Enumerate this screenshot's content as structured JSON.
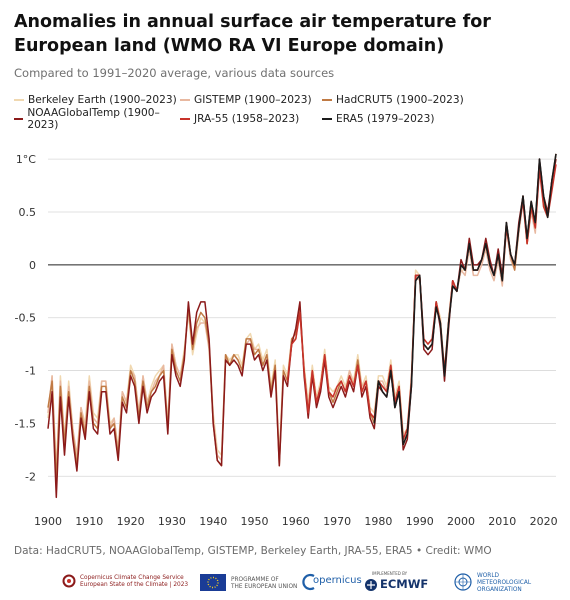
{
  "chart_data": {
    "type": "line",
    "title": "Anomalies in annual surface air temperature for European land (WMO RA VI Europe domain)",
    "subtitle": "Compared to 1991–2020 average, various data sources",
    "xlabel": "",
    "ylabel": "",
    "xlim": [
      1900,
      2023
    ],
    "ylim": [
      -2.3,
      1.2
    ],
    "x_ticks": [
      "1900",
      "1910",
      "1920",
      "1930",
      "1940",
      "1950",
      "1960",
      "1970",
      "1980",
      "1990",
      "2000",
      "2010",
      "2020"
    ],
    "y_ticks": [
      {
        "value": 1,
        "label": "1°C"
      },
      {
        "value": 0.5,
        "label": "0.5"
      },
      {
        "value": 0,
        "label": "0"
      },
      {
        "value": -0.5,
        "label": "-0.5"
      },
      {
        "value": -1,
        "label": "-1"
      },
      {
        "value": -1.5,
        "label": "-1.5"
      },
      {
        "value": -2,
        "label": "-2"
      }
    ],
    "grid": "horizontal",
    "legend_position": "top",
    "series": [
      {
        "name": "Berkeley Earth (1900–2023)",
        "color": "#f0d8b0",
        "start": 1900,
        "values": [
          -1.45,
          -1.05,
          -1.95,
          -1.05,
          -1.65,
          -1.1,
          -1.55,
          -1.85,
          -1.35,
          -1.5,
          -1.05,
          -1.4,
          -1.45,
          -1.1,
          -1.1,
          -1.5,
          -1.45,
          -1.75,
          -1.2,
          -1.3,
          -0.95,
          -1.05,
          -1.4,
          -1.05,
          -1.3,
          -1.15,
          -1.05,
          -1.0,
          -0.95,
          -1.5,
          -0.75,
          -0.95,
          -1.05,
          -0.8,
          -0.45,
          -0.85,
          -0.65,
          -0.5,
          -0.55,
          -0.75,
          -1.4,
          -1.75,
          -1.8,
          -0.85,
          -0.9,
          -0.85,
          -0.85,
          -0.95,
          -0.7,
          -0.65,
          -0.8,
          -0.75,
          -0.9,
          -0.8,
          -1.15,
          -0.9,
          -1.8,
          -0.95,
          -1.05,
          -0.7,
          -0.7,
          -0.4,
          -0.95,
          -1.3,
          -0.95,
          -1.25,
          -1.1,
          -0.8,
          -1.15,
          -1.2,
          -1.15,
          -1.05,
          -1.15,
          -1.0,
          -1.1,
          -0.85,
          -1.15,
          -1.05,
          -1.35,
          -1.4,
          -1.05,
          -1.05,
          -1.15,
          -0.9,
          -1.25,
          -1.1,
          -1.6,
          -1.55,
          -1.05,
          -0.05,
          -0.1,
          -0.7,
          -0.75,
          -0.7,
          -0.35,
          -0.5,
          -1.0,
          -0.5,
          -0.15,
          -0.25,
          -0.05,
          -0.05,
          0.2,
          -0.05,
          -0.05,
          0.05,
          0.2,
          0.0,
          -0.1,
          0.1,
          -0.15,
          0.4,
          0.1,
          0.0,
          0.35,
          0.65,
          0.2,
          0.55,
          0.35,
          0.95,
          0.55,
          0.45,
          0.75,
          1.0
        ]
      },
      {
        "name": "GISTEMP (1900–2023)",
        "color": "#e8b8a0",
        "start": 1900,
        "values": [
          -1.4,
          -1.05,
          -1.95,
          -1.1,
          -1.65,
          -1.15,
          -1.55,
          -1.8,
          -1.35,
          -1.55,
          -1.1,
          -1.45,
          -1.5,
          -1.1,
          -1.1,
          -1.55,
          -1.45,
          -1.75,
          -1.2,
          -1.3,
          -1.0,
          -1.05,
          -1.4,
          -1.05,
          -1.3,
          -1.2,
          -1.1,
          -1.05,
          -0.95,
          -1.5,
          -0.75,
          -0.95,
          -1.05,
          -0.85,
          -0.45,
          -0.8,
          -0.6,
          -0.55,
          -0.55,
          -0.8,
          -1.45,
          -1.8,
          -1.85,
          -0.85,
          -0.95,
          -0.85,
          -0.9,
          -1.0,
          -0.75,
          -0.7,
          -0.8,
          -0.8,
          -0.95,
          -0.85,
          -1.2,
          -0.95,
          -1.85,
          -1.0,
          -1.1,
          -0.75,
          -0.7,
          -0.45,
          -1.0,
          -1.35,
          -1.0,
          -1.3,
          -1.15,
          -0.85,
          -1.2,
          -1.25,
          -1.15,
          -1.1,
          -1.2,
          -1.0,
          -1.15,
          -0.9,
          -1.15,
          -1.1,
          -1.4,
          -1.45,
          -1.1,
          -1.1,
          -1.2,
          -0.95,
          -1.3,
          -1.15,
          -1.65,
          -1.6,
          -1.1,
          -0.1,
          -0.15,
          -0.75,
          -0.8,
          -0.75,
          -0.4,
          -0.55,
          -1.05,
          -0.55,
          -0.2,
          -0.25,
          -0.05,
          -0.1,
          0.15,
          -0.1,
          -0.1,
          0.0,
          0.15,
          -0.05,
          -0.15,
          0.05,
          -0.2,
          0.35,
          0.05,
          -0.05,
          0.3,
          0.6,
          0.2,
          0.5,
          0.3,
          0.95,
          0.55,
          0.45,
          0.75,
          1.05
        ]
      },
      {
        "name": "HadCRUT5 (1900–2023)",
        "color": "#c07a44",
        "start": 1900,
        "values": [
          -1.35,
          -1.1,
          -2.05,
          -1.15,
          -1.7,
          -1.2,
          -1.6,
          -1.9,
          -1.4,
          -1.6,
          -1.15,
          -1.5,
          -1.55,
          -1.15,
          -1.15,
          -1.55,
          -1.5,
          -1.8,
          -1.25,
          -1.35,
          -1.0,
          -1.1,
          -1.45,
          -1.1,
          -1.35,
          -1.2,
          -1.15,
          -1.05,
          -1.0,
          -1.55,
          -0.8,
          -1.0,
          -1.1,
          -0.85,
          -0.4,
          -0.8,
          -0.55,
          -0.45,
          -0.5,
          -0.75,
          -1.5,
          -1.85,
          -1.9,
          -0.85,
          -0.95,
          -0.85,
          -0.9,
          -1.0,
          -0.7,
          -0.7,
          -0.85,
          -0.8,
          -0.95,
          -0.85,
          -1.2,
          -0.95,
          -1.9,
          -1.0,
          -1.1,
          -0.7,
          -0.65,
          -0.4,
          -1.0,
          -1.4,
          -1.0,
          -1.3,
          -1.15,
          -0.85,
          -1.2,
          -1.3,
          -1.2,
          -1.1,
          -1.2,
          -1.05,
          -1.15,
          -0.9,
          -1.2,
          -1.1,
          -1.4,
          -1.5,
          -1.1,
          -1.15,
          -1.2,
          -0.95,
          -1.3,
          -1.15,
          -1.7,
          -1.6,
          -1.1,
          -0.1,
          -0.1,
          -0.75,
          -0.8,
          -0.75,
          -0.35,
          -0.55,
          -1.05,
          -0.55,
          -0.15,
          -0.25,
          0.0,
          -0.05,
          0.2,
          -0.05,
          -0.05,
          0.05,
          0.2,
          0.0,
          -0.1,
          0.1,
          -0.15,
          0.35,
          0.1,
          -0.05,
          0.35,
          0.65,
          0.2,
          0.55,
          0.35,
          0.95,
          0.6,
          0.45,
          0.8,
          1.05
        ]
      },
      {
        "name": "NOAAGlobalTemp (1900–2023)",
        "color": "#8b1a1a",
        "start": 1900,
        "values": [
          -1.55,
          -1.2,
          -2.2,
          -1.25,
          -1.8,
          -1.25,
          -1.65,
          -1.95,
          -1.45,
          -1.65,
          -1.2,
          -1.55,
          -1.6,
          -1.2,
          -1.2,
          -1.6,
          -1.55,
          -1.85,
          -1.3,
          -1.4,
          -1.05,
          -1.15,
          -1.5,
          -1.15,
          -1.4,
          -1.25,
          -1.2,
          -1.1,
          -1.05,
          -1.6,
          -0.85,
          -1.05,
          -1.15,
          -0.9,
          -0.35,
          -0.75,
          -0.45,
          -0.35,
          -0.35,
          -0.7,
          -1.5,
          -1.85,
          -1.9,
          -0.9,
          -0.95,
          -0.9,
          -0.95,
          -1.05,
          -0.75,
          -0.75,
          -0.9,
          -0.85,
          -1.0,
          -0.9,
          -1.25,
          -1.0,
          -1.9,
          -1.05,
          -1.15,
          -0.75,
          -0.6,
          -0.35,
          -1.05,
          -1.45,
          -1.05,
          -1.35,
          -1.2,
          -0.9,
          -1.25,
          -1.35,
          -1.25,
          -1.15,
          -1.25,
          -1.1,
          -1.2,
          -0.95,
          -1.25,
          -1.15,
          -1.45,
          -1.55,
          -1.15,
          -1.2,
          -1.25,
          -1.0,
          -1.35,
          -1.2,
          -1.75,
          -1.65,
          -1.15,
          -0.1,
          -0.1,
          -0.8,
          -0.85,
          -0.8,
          -0.35,
          -0.6,
          -1.1,
          -0.6,
          -0.15,
          -0.25,
          0.05,
          -0.05,
          0.25,
          0.0,
          0.0,
          0.05,
          0.25,
          0.05,
          -0.1,
          0.15,
          -0.1,
          0.4,
          0.1,
          0.0,
          0.4,
          0.65,
          0.25,
          0.6,
          0.4,
          1.0,
          0.65,
          0.5,
          0.8,
          1.0
        ]
      },
      {
        "name": "JRA-55 (1958–2023)",
        "color": "#c8322a",
        "start": 1958,
        "values": [
          -1.1,
          -0.75,
          -0.7,
          -0.45,
          -1.0,
          -1.4,
          -1.0,
          -1.3,
          -1.15,
          -0.85,
          -1.2,
          -1.25,
          -1.15,
          -1.1,
          -1.2,
          -1.05,
          -1.15,
          -0.95,
          -1.2,
          -1.1,
          -1.4,
          -1.45,
          -1.1,
          -1.15,
          -1.2,
          -0.95,
          -1.3,
          -1.15,
          -1.65,
          -1.55,
          -1.1,
          -0.1,
          -0.1,
          -0.7,
          -0.75,
          -0.7,
          -0.35,
          -0.55,
          -1.0,
          -0.55,
          -0.15,
          -0.25,
          0.0,
          -0.05,
          0.2,
          -0.05,
          -0.05,
          0.05,
          0.2,
          0.0,
          -0.1,
          0.1,
          -0.15,
          0.35,
          0.1,
          0.0,
          0.35,
          0.6,
          0.2,
          0.55,
          0.35,
          0.9,
          0.55,
          0.45,
          0.7,
          0.95
        ]
      },
      {
        "name": "ERA5 (1979–2023)",
        "color": "#1c1c1c",
        "start": 1979,
        "values": [
          -1.5,
          -1.1,
          -1.2,
          -1.25,
          -1.0,
          -1.35,
          -1.2,
          -1.7,
          -1.6,
          -1.15,
          -0.15,
          -0.1,
          -0.75,
          -0.8,
          -0.75,
          -0.4,
          -0.55,
          -1.05,
          -0.55,
          -0.2,
          -0.25,
          0.0,
          -0.05,
          0.2,
          -0.05,
          -0.05,
          0.05,
          0.2,
          0.0,
          -0.1,
          0.1,
          -0.15,
          0.4,
          0.1,
          0.0,
          0.35,
          0.65,
          0.25,
          0.6,
          0.4,
          1.0,
          0.65,
          0.45,
          0.8,
          1.05
        ]
      }
    ]
  },
  "source_text": "Data: HadCRUT5, NOAAGlobalTemp, GISTEMP, Berkeley Earth, JRA-55, ERA5 • Credit: WMO",
  "footer": {
    "copernicus_service": "Copernicus Climate Change Service",
    "esotc": "European State of the Climate | 2023",
    "programme_line1": "PROGRAMME OF",
    "programme_line2": "THE EUROPEAN UNION",
    "copernicus_logo": "opernicus",
    "ecmwf_small": "IMPLEMENTED BY",
    "ecmwf": "ECMWF",
    "wmo_line1": "WORLD",
    "wmo_line2": "METEOROLOGICAL",
    "wmo_line3": "ORGANIZATION"
  }
}
